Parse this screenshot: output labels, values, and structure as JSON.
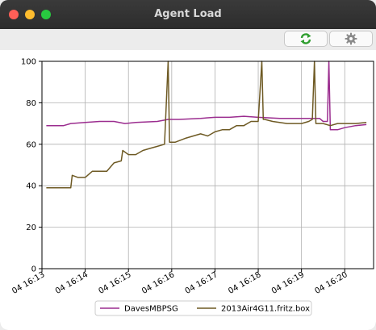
{
  "window": {
    "title": "Agent Load"
  },
  "toolbar": {
    "refresh_icon": "refresh-icon",
    "settings_icon": "gear-icon"
  },
  "chart_data": {
    "type": "line",
    "title": "",
    "xlabel": "",
    "ylabel": "",
    "xlim": [
      "04 16:13",
      "04 16:20:40"
    ],
    "ylim": [
      0,
      100
    ],
    "grid": true,
    "legend_placement": "bottom-center",
    "x_ticks": [
      "04 16:13",
      "04 16:14",
      "04 16:15",
      "04 16:16",
      "04 16:17",
      "04 16:18",
      "04 16:19",
      "04 16:20"
    ],
    "y_ticks": [
      0,
      20,
      40,
      60,
      80,
      100
    ],
    "series": [
      {
        "name": "DavesMBPSG",
        "color": "#9b2d8f",
        "x": [
          "16:13:06",
          "16:13:30",
          "16:13:40",
          "16:14:00",
          "16:14:20",
          "16:14:40",
          "16:14:55",
          "16:15:10",
          "16:15:40",
          "16:15:55",
          "16:16:10",
          "16:16:40",
          "16:17:00",
          "16:17:20",
          "16:17:40",
          "16:18:00",
          "16:18:30",
          "16:19:00",
          "16:19:15",
          "16:19:25",
          "16:19:30",
          "16:19:36",
          "16:19:38",
          "16:19:40",
          "16:19:42",
          "16:19:50",
          "16:20:00",
          "16:20:15",
          "16:20:30"
        ],
        "y": [
          69,
          69,
          70,
          70.5,
          71,
          71,
          70,
          70.5,
          71,
          72,
          72,
          72.5,
          73,
          73,
          73.5,
          73,
          72.5,
          72.5,
          72.5,
          72.5,
          71,
          71,
          100,
          67,
          67,
          67,
          68,
          69,
          69.5
        ]
      },
      {
        "name": "2013Air4G11.fritz.box",
        "color": "#6e5a24",
        "x": [
          "16:13:06",
          "16:13:30",
          "16:13:40",
          "16:13:42",
          "16:13:50",
          "16:14:00",
          "16:14:10",
          "16:14:20",
          "16:14:30",
          "16:14:40",
          "16:14:50",
          "16:14:52",
          "16:15:00",
          "16:15:10",
          "16:15:20",
          "16:15:30",
          "16:15:40",
          "16:15:50",
          "16:15:55",
          "16:15:57",
          "16:15:59",
          "16:16:05",
          "16:16:20",
          "16:16:40",
          "16:16:50",
          "16:17:00",
          "16:17:10",
          "16:17:20",
          "16:17:30",
          "16:17:40",
          "16:17:50",
          "16:18:00",
          "16:18:05",
          "16:18:07",
          "16:18:09",
          "16:18:20",
          "16:18:40",
          "16:19:00",
          "16:19:10",
          "16:19:15",
          "16:19:18",
          "16:19:20",
          "16:19:30",
          "16:19:40",
          "16:19:50",
          "16:20:00",
          "16:20:15",
          "16:20:30"
        ],
        "y": [
          39,
          39,
          39,
          45,
          44,
          44,
          47,
          47,
          47,
          51,
          52,
          57,
          55,
          55,
          57,
          58,
          59,
          60,
          100,
          61,
          61,
          61,
          63,
          65,
          64,
          66,
          67,
          67,
          69,
          69,
          71,
          71,
          100,
          72,
          72,
          71,
          70,
          70,
          71,
          72,
          100,
          70,
          70,
          69,
          70,
          70,
          70,
          70.5
        ]
      }
    ]
  }
}
